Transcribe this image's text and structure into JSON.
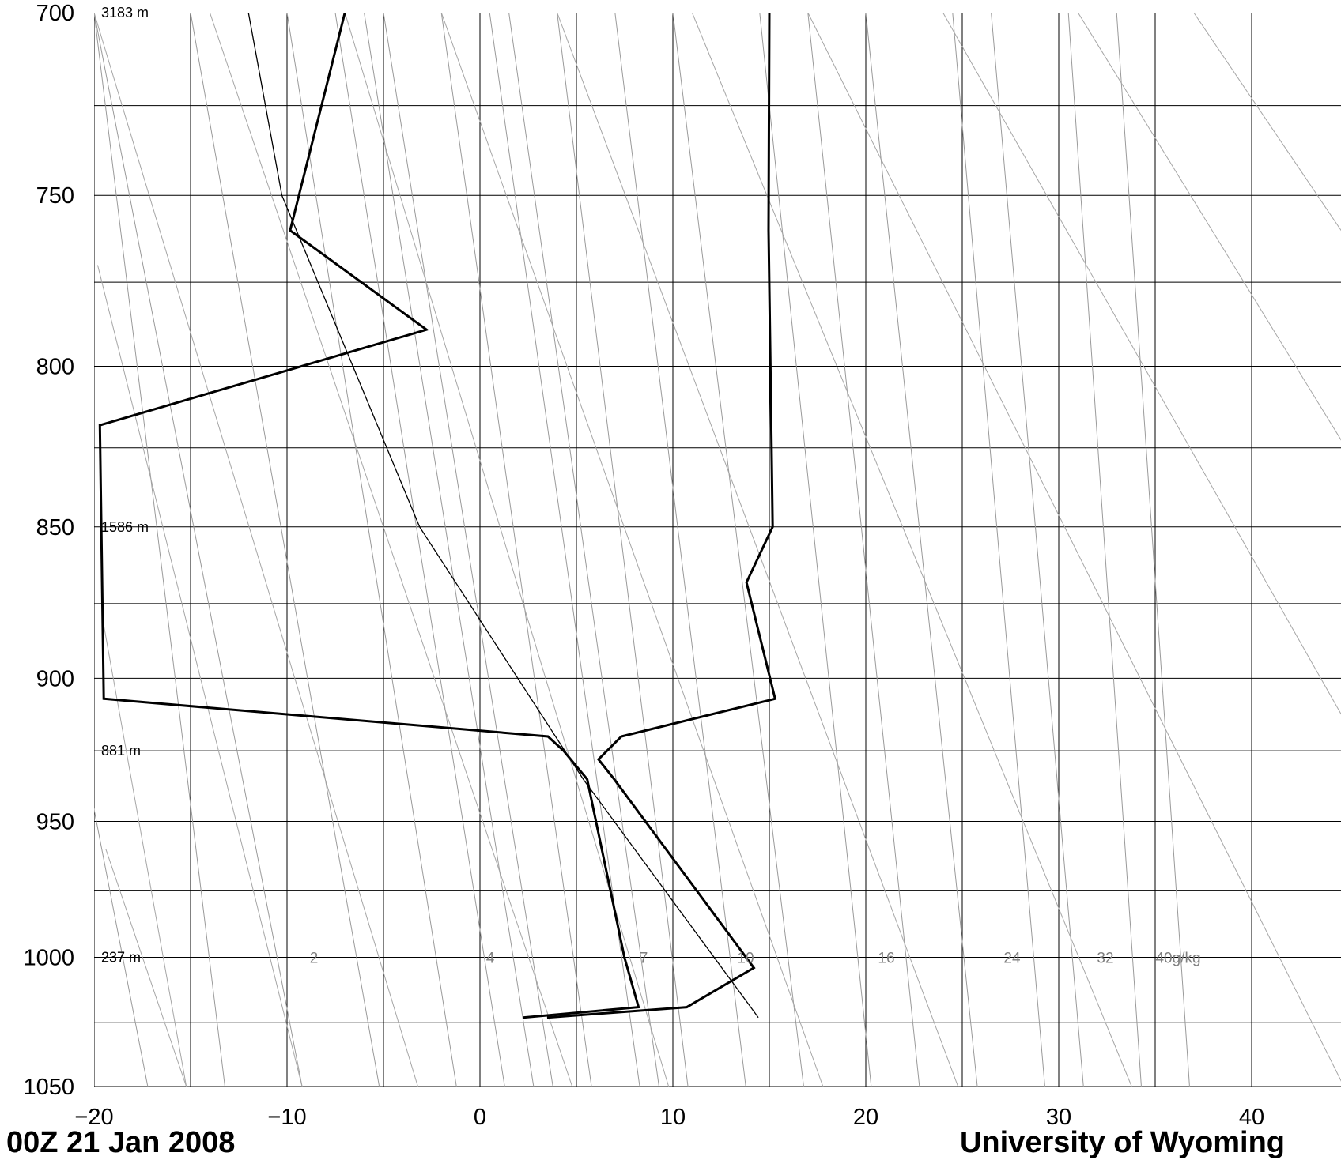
{
  "chart_data": {
    "type": "line",
    "skewed": true,
    "diagram": "Skew-T log-P",
    "xlim": [
      -20,
      45
    ],
    "ylim": [
      1050,
      700
    ],
    "y_log_scale": true,
    "x_ticks": [
      "−20",
      "−10",
      "0",
      "10",
      "20",
      "30",
      "40"
    ],
    "x_tick_values": [
      -20,
      -10,
      0,
      10,
      20,
      30,
      40
    ],
    "y_ticks": [
      "700",
      "750",
      "800",
      "850",
      "900",
      "950",
      "1000",
      "1050"
    ],
    "y_tick_values": [
      700,
      750,
      800,
      850,
      900,
      950,
      1000,
      1050
    ],
    "grid": true,
    "height_labels": [
      {
        "p": 700,
        "text": "3183 m"
      },
      {
        "p": 850,
        "text": "1586 m"
      },
      {
        "p": 925,
        "text": "881 m"
      },
      {
        "p": 1000,
        "text": "237 m"
      }
    ],
    "mixing_ratio_labels": [
      "2",
      "4",
      "7",
      "10",
      "16",
      "24",
      "32",
      "40g/kg"
    ],
    "mixing_ratio_values": [
      2,
      4,
      7,
      10,
      16,
      24,
      32,
      40
    ],
    "series": [
      {
        "role": "temperature",
        "points": [
          [
            2.75,
            1023
          ],
          [
            10.0,
            1019
          ],
          [
            13.5,
            1004
          ],
          [
            6.4,
            935
          ],
          [
            5.6,
            928
          ],
          [
            6.8,
            920
          ],
          [
            14.8,
            907
          ],
          [
            13.4,
            868
          ],
          [
            14.8,
            850
          ],
          [
            14.8,
            760
          ],
          [
            15.0,
            700
          ]
        ]
      },
      {
        "role": "dewpoint",
        "points": [
          [
            1.5,
            1023
          ],
          [
            7.5,
            1019
          ],
          [
            6.8,
            1000
          ],
          [
            5.0,
            935
          ],
          [
            3.8,
            925
          ],
          [
            3.0,
            920
          ],
          [
            -20.0,
            907
          ],
          [
            -20.0,
            818
          ],
          [
            -3.0,
            789
          ],
          [
            -10.0,
            760
          ],
          [
            -7.0,
            700
          ]
        ]
      },
      {
        "role": "parcel",
        "points": [
          [
            13.7,
            1023
          ],
          [
            4.8,
            935
          ],
          [
            -3.5,
            850
          ],
          [
            -10.4,
            750
          ],
          [
            -12.0,
            700
          ]
        ]
      }
    ]
  },
  "footer": {
    "left": "00Z 21 Jan 2008",
    "right": "University of Wyoming"
  }
}
